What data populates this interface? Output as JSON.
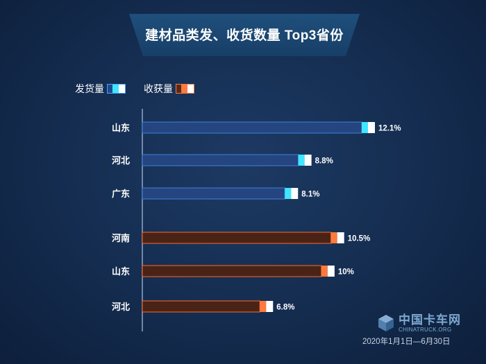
{
  "title": "建材品类发、收货数量 Top3省份",
  "legend": [
    {
      "label": "发货量",
      "kind": "ship"
    },
    {
      "label": "收获量",
      "kind": "recv"
    }
  ],
  "colors": {
    "ship_fill": "#24457f",
    "ship_border": "#3f7fd8",
    "ship_accent": "#3fe6ff",
    "recv_fill": "#4a2317",
    "recv_border": "#ff6a2a",
    "recv_accent": "#ff7a3c",
    "cap": "#ffffff"
  },
  "chart_data": [
    {
      "type": "bar",
      "orientation": "horizontal",
      "series_name": "发货量",
      "categories": [
        "山东",
        "河北",
        "广东"
      ],
      "values": [
        12.1,
        8.8,
        8.1
      ],
      "value_labels": [
        "12.1%",
        "8.8%",
        "8.1%"
      ],
      "unit": "%"
    },
    {
      "type": "bar",
      "orientation": "horizontal",
      "series_name": "收获量",
      "categories": [
        "河南",
        "山东",
        "河北"
      ],
      "values": [
        10.5,
        10,
        6.8
      ],
      "value_labels": [
        "10.5%",
        "10%",
        "6.8%"
      ],
      "unit": "%"
    }
  ],
  "footer": {
    "logo_text": "中国卡车网",
    "logo_sub": "CHINATRUCK.ORG",
    "date_range": "2020年1月1日—6月30日"
  }
}
